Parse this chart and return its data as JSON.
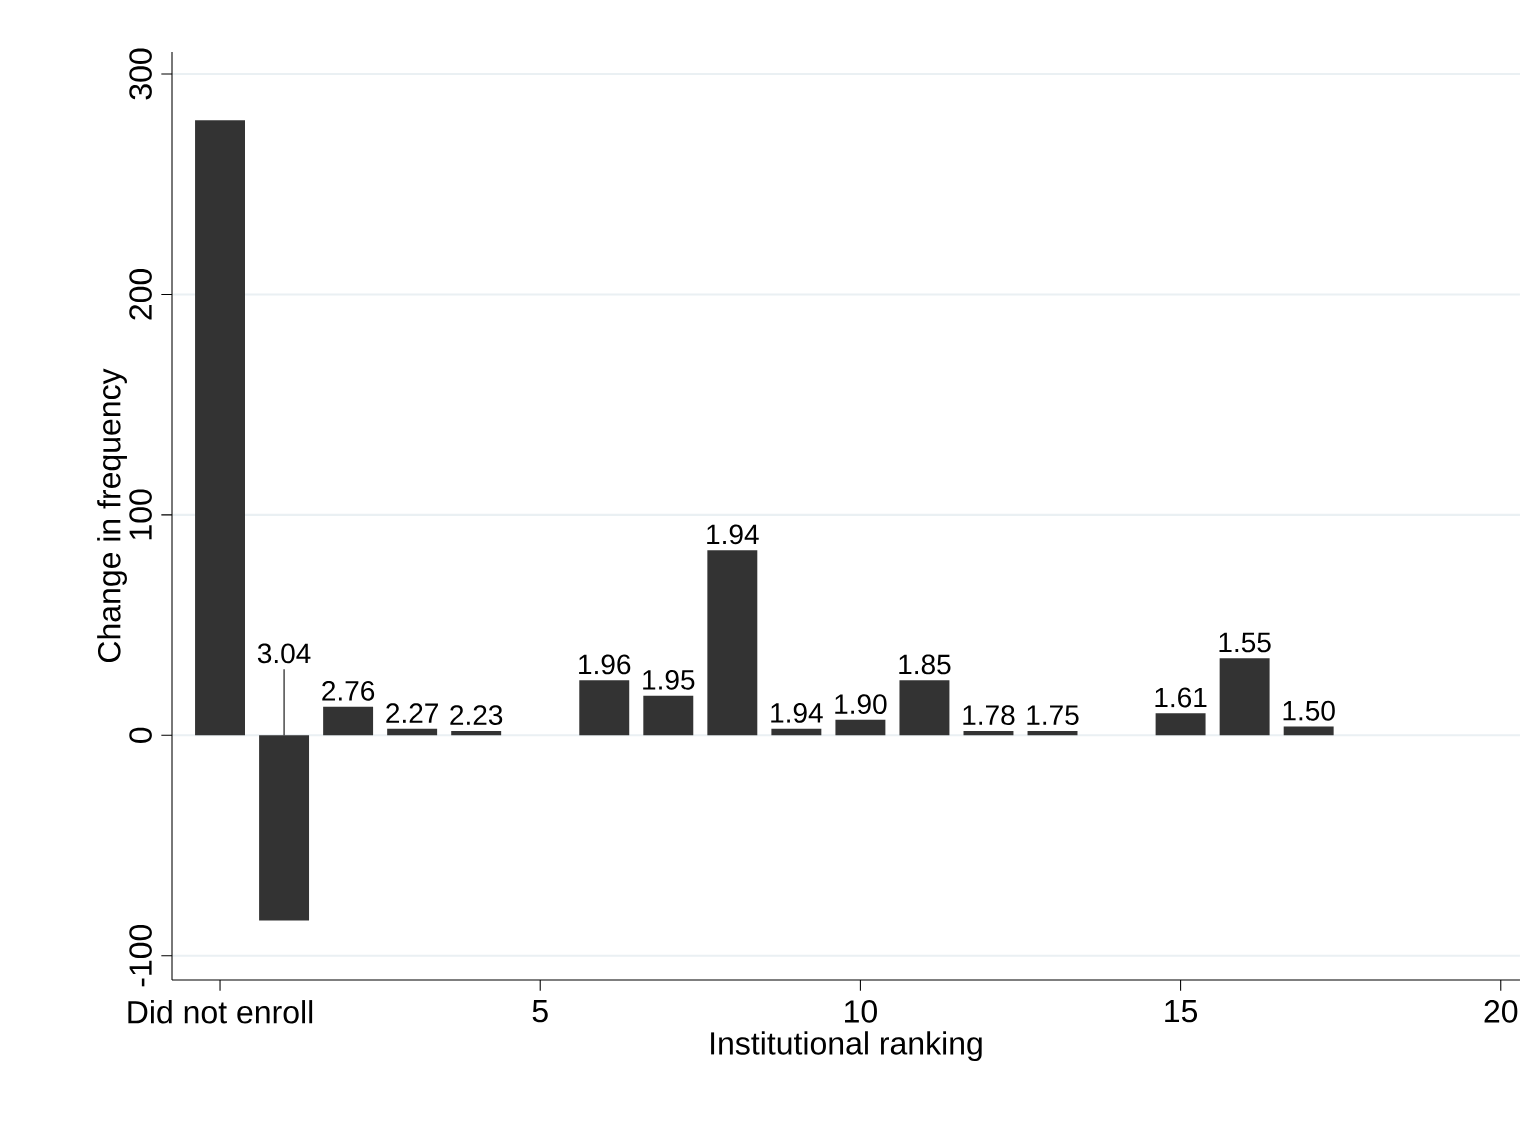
{
  "chart_data": {
    "type": "bar",
    "xlabel": "Institutional ranking",
    "ylabel": "Change in frequency",
    "x": [
      0,
      1,
      2,
      3,
      4,
      5,
      6,
      7,
      8,
      9,
      10,
      11,
      12,
      13,
      14,
      15,
      16,
      17
    ],
    "values": [
      279,
      -84,
      13,
      3,
      2,
      null,
      25,
      18,
      84,
      3,
      7,
      25,
      2,
      2,
      null,
      10,
      35,
      4
    ],
    "annotations": [
      {
        "text": "3.04",
        "x": 1,
        "y": 0
      },
      {
        "text": "2.76",
        "x": 2,
        "y": 13
      },
      {
        "text": "2.27",
        "x": 3,
        "y": 3
      },
      {
        "text": "2.23",
        "x": 4,
        "y": 2
      },
      {
        "text": "1.96",
        "x": 6,
        "y": 25
      },
      {
        "text": "1.95",
        "x": 7,
        "y": 18
      },
      {
        "text": "1.94",
        "x": 8,
        "y": 84
      },
      {
        "text": "1.94",
        "x": 9,
        "y": 3
      },
      {
        "text": "1.90",
        "x": 10,
        "y": 7
      },
      {
        "text": "1.85",
        "x": 11,
        "y": 25
      },
      {
        "text": "1.78",
        "x": 12,
        "y": 2
      },
      {
        "text": "1.75",
        "x": 13,
        "y": 2
      },
      {
        "text": "1.61",
        "x": 15,
        "y": 10
      },
      {
        "text": "1.55",
        "x": 16,
        "y": 35
      },
      {
        "text": "1.50",
        "x": 17,
        "y": 4
      }
    ],
    "color": "#333333",
    "xlim": [
      -0.75,
      20.3
    ],
    "ylim": [
      -111,
      310
    ],
    "xticks": [
      {
        "value": 0,
        "label": "Did not enroll"
      },
      5,
      10,
      15,
      20
    ],
    "yticks": [
      -100,
      0,
      100,
      200,
      300
    ],
    "grid": "y"
  }
}
